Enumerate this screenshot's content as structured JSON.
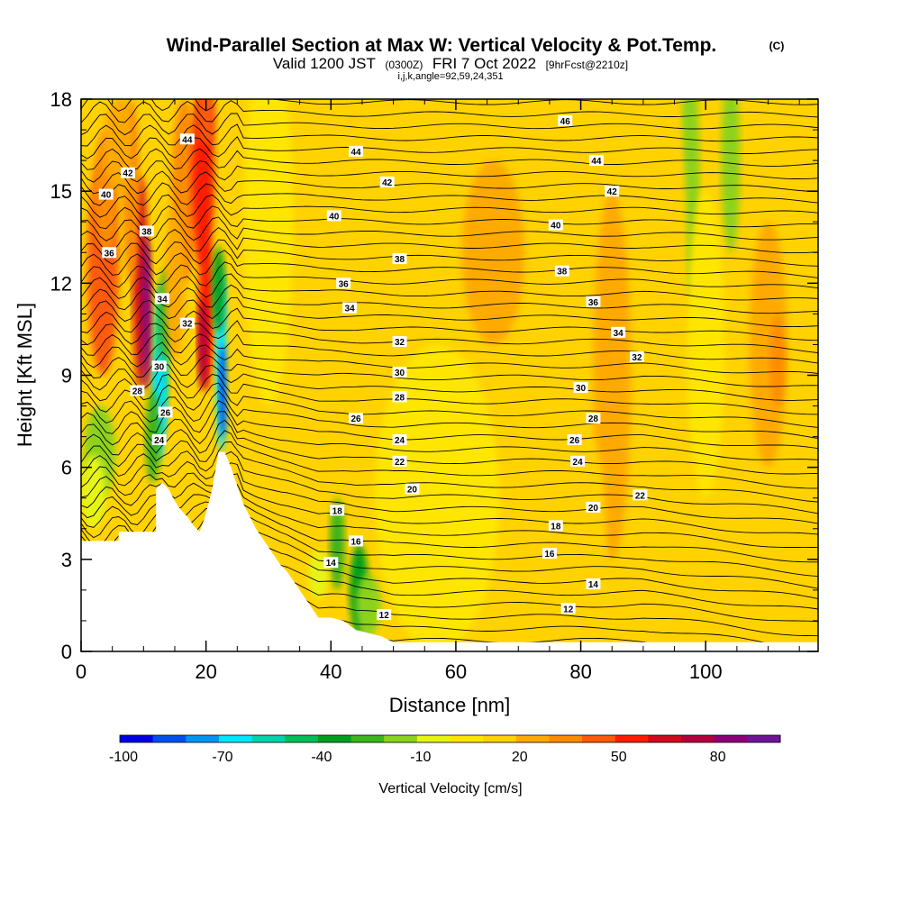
{
  "title": "Wind-Parallel Section at Max W: Vertical Velocity & Pot.Temp.",
  "title_mark": "(C)",
  "subtitle_valid": "Valid 1200 JST",
  "subtitle_utc": "(0300Z)",
  "subtitle_date": "FRI 7 Oct 2022",
  "subtitle_fcst": "[9hrFcst@2210z]",
  "subtitle_coords": "i,j,k,angle=92,59,24,351",
  "chart_data": {
    "type": "heatmap",
    "xlabel": "Distance [nm]",
    "ylabel": "Height [Kft MSL]",
    "xlim": [
      0,
      118
    ],
    "ylim": [
      0,
      18
    ],
    "x_ticks": [
      "0",
      "20",
      "40",
      "60",
      "80",
      "100"
    ],
    "x_tick_values": [
      0,
      20,
      40,
      60,
      80,
      100
    ],
    "y_ticks": [
      "0",
      "3",
      "6",
      "9",
      "12",
      "15",
      "18"
    ],
    "y_tick_values": [
      0,
      3,
      6,
      9,
      12,
      15,
      18
    ],
    "colorbar": {
      "label": "Vertical Velocity [cm/s]",
      "tick_labels": [
        "-100",
        "-70",
        "-40",
        "-10",
        "20",
        "50",
        "80"
      ],
      "tick_values": [
        -100,
        -70,
        -40,
        -10,
        20,
        50,
        80
      ],
      "levels": [
        -100,
        -90,
        -80,
        -70,
        -60,
        -50,
        -40,
        -30,
        -20,
        -10,
        0,
        10,
        20,
        30,
        40,
        50,
        60,
        70,
        80,
        90
      ],
      "colors": [
        "#0000e6",
        "#0050f0",
        "#0096f0",
        "#00e6ff",
        "#00d2aa",
        "#00be5a",
        "#00a01e",
        "#3cb41e",
        "#8cd21e",
        "#e6f514",
        "#ffe600",
        "#ffd200",
        "#ffaa00",
        "#ff8c00",
        "#ff5a0a",
        "#ff1e00",
        "#d20a1e",
        "#b4003c",
        "#8c0078",
        "#6e1496"
      ]
    },
    "terrain_profile": [
      [
        0,
        3.6
      ],
      [
        6,
        3.6
      ],
      [
        6,
        3.9
      ],
      [
        12,
        3.9
      ],
      [
        12,
        5.3
      ],
      [
        13,
        5.5
      ],
      [
        14,
        5.3
      ],
      [
        15,
        4.9
      ],
      [
        16,
        4.6
      ],
      [
        17,
        4.4
      ],
      [
        18,
        4.1
      ],
      [
        19,
        3.9
      ],
      [
        20,
        4.5
      ],
      [
        21,
        5.3
      ],
      [
        22,
        6.5
      ],
      [
        23,
        6.5
      ],
      [
        24,
        6.0
      ],
      [
        25,
        5.4
      ],
      [
        26,
        4.8
      ],
      [
        27,
        4.4
      ],
      [
        28,
        4.0
      ],
      [
        29,
        3.7
      ],
      [
        30,
        3.4
      ],
      [
        31,
        3.1
      ],
      [
        32,
        2.8
      ],
      [
        33,
        2.6
      ],
      [
        34,
        2.3
      ],
      [
        35,
        2.0
      ],
      [
        36,
        1.7
      ],
      [
        37,
        1.4
      ],
      [
        38,
        1.1
      ],
      [
        40,
        1.1
      ],
      [
        42,
        1.0
      ],
      [
        44,
        0.7
      ],
      [
        46,
        0.6
      ],
      [
        48,
        0.5
      ],
      [
        50,
        0.3
      ],
      [
        118,
        0.3
      ]
    ],
    "isentrope_labels": [
      {
        "text": "46",
        "x": 77.5,
        "y": 17.3
      },
      {
        "text": "44",
        "x": 17.0,
        "y": 16.7
      },
      {
        "text": "44",
        "x": 44.0,
        "y": 16.3
      },
      {
        "text": "44",
        "x": 82.5,
        "y": 16.0
      },
      {
        "text": "42",
        "x": 7.5,
        "y": 15.6
      },
      {
        "text": "42",
        "x": 49.0,
        "y": 15.3
      },
      {
        "text": "42",
        "x": 85.0,
        "y": 15.0
      },
      {
        "text": "40",
        "x": 4.0,
        "y": 14.9
      },
      {
        "text": "40",
        "x": 40.5,
        "y": 14.2
      },
      {
        "text": "40",
        "x": 76.0,
        "y": 13.9
      },
      {
        "text": "38",
        "x": 10.5,
        "y": 13.7
      },
      {
        "text": "38",
        "x": 51.0,
        "y": 12.8
      },
      {
        "text": "38",
        "x": 77.0,
        "y": 12.4
      },
      {
        "text": "36",
        "x": 4.5,
        "y": 13.0
      },
      {
        "text": "36",
        "x": 42.0,
        "y": 12.0
      },
      {
        "text": "36",
        "x": 82.0,
        "y": 11.4
      },
      {
        "text": "34",
        "x": 13.0,
        "y": 11.5
      },
      {
        "text": "34",
        "x": 43.0,
        "y": 11.2
      },
      {
        "text": "34",
        "x": 86.0,
        "y": 10.4
      },
      {
        "text": "32",
        "x": 17.0,
        "y": 10.7
      },
      {
        "text": "32",
        "x": 51.0,
        "y": 10.1
      },
      {
        "text": "32",
        "x": 89.0,
        "y": 9.6
      },
      {
        "text": "30",
        "x": 12.5,
        "y": 9.3
      },
      {
        "text": "30",
        "x": 51.0,
        "y": 9.1
      },
      {
        "text": "30",
        "x": 80.0,
        "y": 8.6
      },
      {
        "text": "28",
        "x": 9.0,
        "y": 8.5
      },
      {
        "text": "28",
        "x": 51.0,
        "y": 8.3
      },
      {
        "text": "28",
        "x": 82.0,
        "y": 7.6
      },
      {
        "text": "26",
        "x": 13.5,
        "y": 7.8
      },
      {
        "text": "26",
        "x": 44.0,
        "y": 7.6
      },
      {
        "text": "26",
        "x": 79.0,
        "y": 6.9
      },
      {
        "text": "24",
        "x": 12.5,
        "y": 6.9
      },
      {
        "text": "24",
        "x": 51.0,
        "y": 6.9
      },
      {
        "text": "24",
        "x": 79.5,
        "y": 6.2
      },
      {
        "text": "22",
        "x": 51.0,
        "y": 6.2
      },
      {
        "text": "22",
        "x": 89.5,
        "y": 5.1
      },
      {
        "text": "20",
        "x": 53.0,
        "y": 5.3
      },
      {
        "text": "20",
        "x": 82.0,
        "y": 4.7
      },
      {
        "text": "18",
        "x": 41.0,
        "y": 4.6
      },
      {
        "text": "18",
        "x": 76.0,
        "y": 4.1
      },
      {
        "text": "16",
        "x": 44.0,
        "y": 3.6
      },
      {
        "text": "16",
        "x": 75.0,
        "y": 3.2
      },
      {
        "text": "14",
        "x": 40.0,
        "y": 2.9
      },
      {
        "text": "14",
        "x": 82.0,
        "y": 2.2
      },
      {
        "text": "12",
        "x": 48.5,
        "y": 1.2
      },
      {
        "text": "12",
        "x": 78.0,
        "y": 1.4
      }
    ]
  }
}
